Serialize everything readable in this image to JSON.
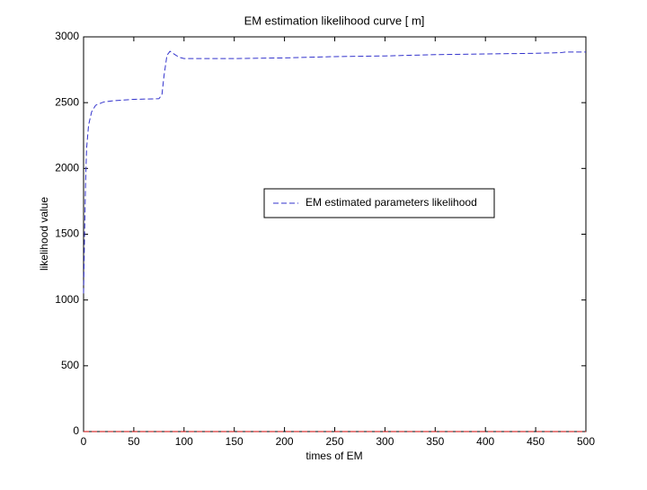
{
  "chart_data": {
    "type": "line",
    "title": "EM estimation likelihood curve [ m]",
    "xlabel": "times of EM",
    "ylabel": "likelihood value",
    "xlim": [
      0,
      500
    ],
    "ylim": [
      0,
      3000
    ],
    "xticks": [
      0,
      50,
      100,
      150,
      200,
      250,
      300,
      350,
      400,
      450,
      500
    ],
    "yticks": [
      0,
      500,
      1000,
      1500,
      2000,
      2500,
      3000
    ],
    "grid": false,
    "legend": "center",
    "series": [
      {
        "name": "EM estimated parameters likelihood",
        "color": "#3333cc",
        "x": [
          0,
          1,
          2,
          3,
          5,
          8,
          12,
          20,
          30,
          50,
          75,
          78,
          80,
          83,
          86,
          90,
          95,
          100,
          150,
          200,
          250,
          300,
          350,
          400,
          450,
          475,
          480,
          500
        ],
        "values": [
          1050,
          1500,
          1900,
          2150,
          2330,
          2430,
          2480,
          2505,
          2515,
          2525,
          2530,
          2560,
          2700,
          2860,
          2890,
          2870,
          2845,
          2835,
          2835,
          2840,
          2850,
          2855,
          2865,
          2870,
          2875,
          2880,
          2885,
          2885
        ]
      },
      {
        "color": "#cc0000",
        "x": [
          0,
          500
        ],
        "values": [
          0,
          0
        ]
      }
    ]
  }
}
